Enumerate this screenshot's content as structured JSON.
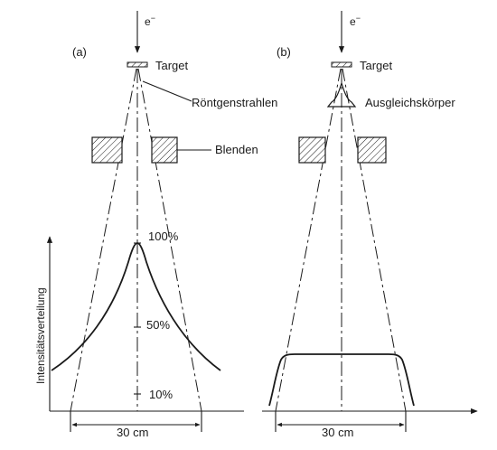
{
  "panel_a": {
    "tag": "(a)",
    "electron": "e",
    "electron_sup": "−",
    "target": "Target",
    "xray": "Röntgenstrahlen",
    "aperture": "Blenden",
    "y_axis": "Intensitätsverteilung",
    "ticks": [
      "100%",
      "50%",
      "10%"
    ],
    "width": "30 cm"
  },
  "panel_b": {
    "tag": "(b)",
    "electron": "e",
    "electron_sup": "−",
    "target": "Target",
    "flattening_filter": "Ausgleichskörper",
    "width": "30 cm"
  }
}
